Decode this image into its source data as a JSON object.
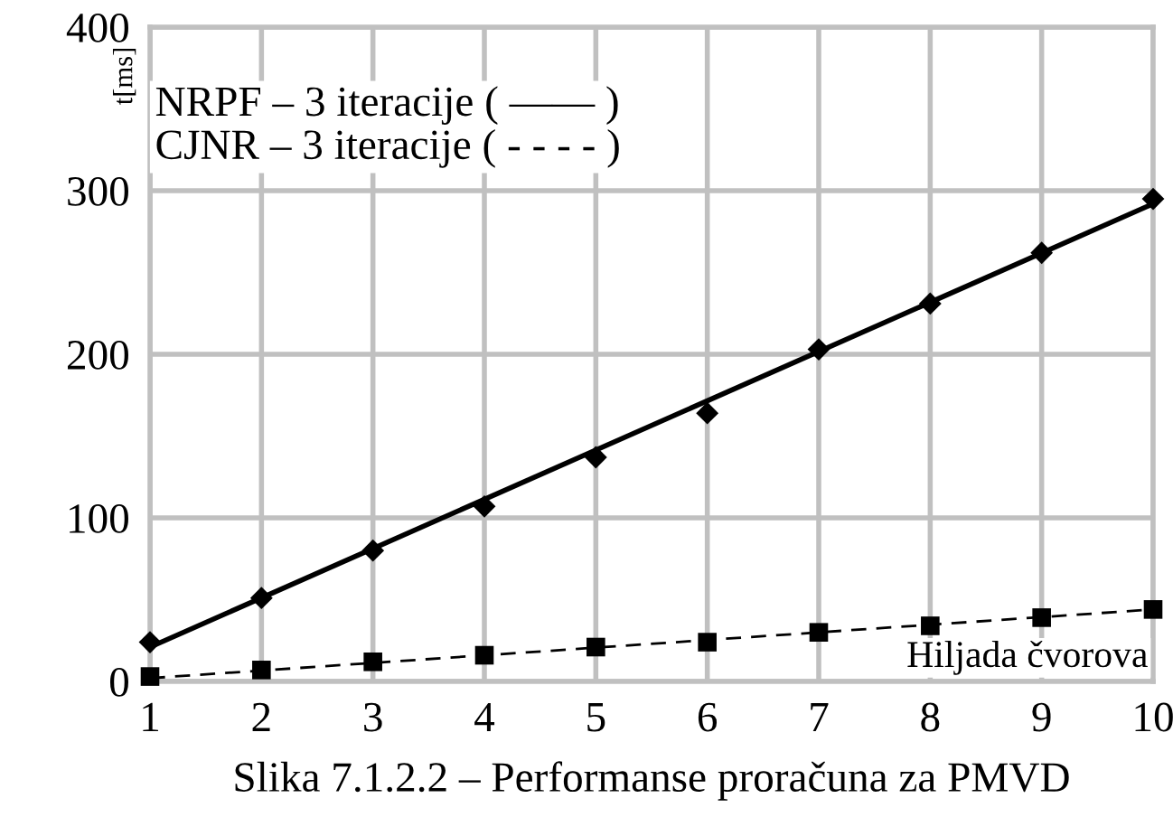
{
  "chart_data": {
    "type": "scatter",
    "title": "Slika 7.1.2.2 – Performanse proračuna za PMVD",
    "xlabel": "Hiljada čvorova",
    "ylabel": "t[ms]",
    "annotations": [
      "NRPF – 3 iteracije ( —— )",
      "CJNR – 3 iteracije ( - - - - )"
    ],
    "series": [
      {
        "color": "#000000",
        "marker": "diamond",
        "x": [
          1,
          2,
          3,
          4,
          5,
          6,
          7,
          8,
          9,
          10
        ],
        "values": [
          24,
          51,
          80,
          107,
          137,
          164,
          203,
          231,
          262,
          295
        ]
      },
      {
        "type": "line",
        "color": "#000000",
        "marker": "none",
        "line_style": "solid",
        "x": [
          1,
          10
        ],
        "values": [
          21,
          292
        ]
      },
      {
        "color": "#000000",
        "marker": "square",
        "x": [
          1,
          2,
          3,
          4,
          5,
          6,
          7,
          8,
          9,
          10
        ],
        "values": [
          3,
          7,
          12,
          16,
          21,
          24,
          30,
          34,
          39,
          44
        ]
      },
      {
        "type": "line",
        "color": "#000000",
        "marker": "none",
        "line_style": "dashed",
        "x": [
          1,
          10
        ],
        "values": [
          2,
          44
        ]
      }
    ],
    "xlim": [
      1,
      10
    ],
    "xticks": [
      1,
      2,
      3,
      4,
      5,
      6,
      7,
      8,
      9,
      10
    ],
    "ylim": [
      0,
      400
    ],
    "yticks": [
      0,
      100,
      200,
      300,
      400
    ],
    "grid": true,
    "legend": false
  }
}
